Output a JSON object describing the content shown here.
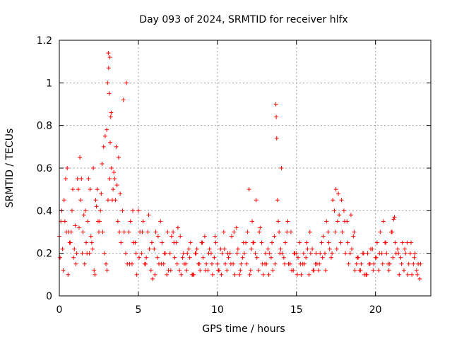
{
  "chart_data": {
    "type": "scatter",
    "title": "Day 093 of 2024, SRMTID for receiver hlfx",
    "xlabel": "GPS time / hours",
    "ylabel": "SRMTID / TECUs",
    "xlim": [
      0,
      23.5
    ],
    "ylim": [
      0,
      1.2
    ],
    "xticks": [
      0,
      5,
      10,
      15,
      20
    ],
    "xtick_labels": [
      "0",
      "5",
      "10",
      "15",
      "20"
    ],
    "yticks": [
      0,
      0.2,
      0.4,
      0.6,
      0.8,
      1.0,
      1.2
    ],
    "ytick_labels": [
      "0",
      "0.2",
      "0.4",
      "0.6",
      "0.8",
      "1",
      "1.2"
    ],
    "grid": true,
    "marker": "+",
    "color": "#ff0000",
    "series": [
      {
        "name": "SRMTID",
        "x": [
          0.0,
          0.1,
          0.2,
          0.3,
          0.4,
          0.5,
          0.6,
          0.7,
          0.8,
          0.9,
          1.0,
          1.1,
          1.2,
          1.3,
          1.4,
          1.5,
          1.6,
          1.7,
          1.8,
          1.9,
          2.0,
          2.1,
          2.2,
          2.3,
          2.4,
          2.5,
          2.6,
          2.7,
          2.8,
          2.9,
          3.0,
          3.05,
          3.1,
          3.12,
          3.15,
          3.2,
          3.25,
          3.3,
          3.4,
          3.5,
          3.6,
          3.7,
          3.8,
          3.9,
          4.0,
          4.2,
          4.4,
          4.6,
          4.8,
          5.0,
          5.2,
          5.4,
          5.6,
          5.8,
          6.0,
          6.2,
          6.4,
          6.6,
          6.8,
          7.0,
          7.2,
          7.4,
          7.6,
          7.8,
          8.0,
          8.2,
          8.4,
          8.6,
          8.8,
          9.0,
          9.2,
          9.4,
          9.6,
          9.8,
          10.0,
          10.2,
          10.4,
          10.6,
          10.8,
          11.0,
          11.2,
          11.4,
          11.6,
          11.8,
          12.0,
          12.2,
          12.4,
          12.6,
          12.8,
          13.0,
          13.2,
          13.4,
          13.6,
          13.7,
          13.72,
          13.75,
          13.8,
          13.9,
          14.0,
          14.2,
          14.4,
          14.6,
          14.8,
          15.0,
          15.2,
          15.4,
          15.6,
          15.8,
          16.0,
          16.2,
          16.4,
          16.6,
          16.8,
          17.0,
          17.2,
          17.4,
          17.5,
          17.6,
          17.8,
          18.0,
          18.2,
          18.4,
          18.6,
          18.8,
          19.0,
          19.2,
          19.4,
          19.6,
          19.8,
          20.0,
          20.2,
          20.4,
          20.6,
          20.8,
          21.0,
          21.2,
          21.4,
          21.6,
          21.8,
          22.0,
          22.2,
          22.4,
          22.6,
          22.8,
          0.05,
          0.25,
          0.45,
          0.65,
          0.85,
          1.05,
          1.25,
          1.45,
          1.65,
          1.85,
          2.05,
          2.25,
          2.45,
          2.65,
          2.85,
          3.35,
          3.45,
          3.55,
          3.65,
          3.75,
          3.85,
          4.1,
          4.3,
          4.5,
          4.7,
          4.9,
          5.1,
          5.3,
          5.5,
          5.7,
          5.9,
          6.1,
          6.3,
          6.5,
          6.7,
          6.9,
          7.1,
          7.3,
          7.5,
          7.7,
          7.9,
          8.1,
          8.3,
          8.5,
          8.7,
          8.9,
          9.1,
          9.3,
          9.5,
          9.7,
          9.9,
          10.1,
          10.3,
          10.5,
          10.7,
          10.9,
          11.1,
          11.3,
          11.5,
          11.7,
          11.9,
          12.1,
          12.3,
          12.5,
          12.7,
          12.9,
          13.1,
          13.3,
          13.5,
          13.85,
          14.1,
          14.3,
          14.5,
          14.7,
          14.9,
          15.1,
          15.3,
          15.5,
          15.7,
          15.9,
          16.1,
          16.3,
          16.5,
          16.7,
          16.9,
          17.1,
          17.3,
          17.7,
          17.9,
          18.1,
          18.3,
          18.5,
          18.7,
          18.9,
          19.1,
          19.3,
          19.5,
          19.7,
          19.9,
          20.1,
          20.3,
          20.5,
          20.7,
          20.9,
          21.1,
          21.3,
          21.5,
          21.7,
          21.9,
          22.1,
          22.3,
          22.5,
          22.7,
          0.15,
          0.35,
          0.55,
          0.75,
          0.95,
          1.15,
          1.35,
          1.55,
          1.75,
          1.95,
          2.15,
          2.35,
          2.55,
          2.75,
          2.95,
          3.02,
          3.08,
          3.18,
          3.22,
          3.28,
          4.05,
          4.25,
          4.45,
          4.65,
          4.85,
          5.05,
          5.25,
          5.45,
          5.65,
          5.85,
          6.05,
          6.25,
          6.45,
          6.65,
          6.85,
          7.05,
          7.25,
          7.45,
          7.65,
          7.85,
          8.05,
          8.25,
          8.45,
          8.65,
          8.85,
          9.05,
          9.25,
          9.45,
          9.65,
          9.85,
          10.05,
          10.25,
          10.45,
          10.65,
          10.85,
          11.05,
          11.25,
          11.45,
          11.65,
          11.85,
          12.05,
          12.15,
          12.25,
          12.45,
          12.65,
          12.85,
          13.05,
          13.25,
          13.45,
          13.65,
          13.95,
          14.05,
          14.25,
          14.45,
          14.65,
          14.85,
          15.05,
          15.25,
          15.45,
          15.65,
          15.85,
          16.05,
          16.25,
          16.45,
          16.65,
          16.85,
          17.05,
          17.25,
          17.45,
          17.55,
          17.65,
          17.85,
          18.05,
          18.25,
          18.45,
          18.65,
          18.85,
          19.05,
          19.25,
          19.45,
          19.65,
          19.85,
          20.05,
          20.25,
          20.45,
          20.65,
          20.85,
          21.05,
          21.15,
          21.25,
          21.45,
          21.65,
          21.85,
          22.05,
          22.25,
          22.45,
          22.65,
          22.85
        ],
        "y": [
          0.28,
          0.35,
          0.22,
          0.45,
          0.55,
          0.6,
          0.3,
          0.25,
          0.4,
          0.18,
          0.33,
          0.2,
          0.5,
          0.65,
          0.55,
          0.3,
          0.15,
          0.25,
          0.35,
          0.2,
          0.28,
          0.22,
          0.12,
          0.45,
          0.5,
          0.3,
          0.4,
          0.62,
          0.7,
          0.75,
          0.78,
          1.0,
          1.14,
          1.07,
          0.95,
          1.12,
          0.84,
          0.6,
          0.5,
          0.55,
          0.7,
          0.35,
          0.3,
          0.25,
          0.4,
          0.2,
          0.3,
          0.15,
          0.25,
          0.4,
          0.2,
          0.15,
          0.3,
          0.12,
          0.22,
          0.18,
          0.35,
          0.15,
          0.1,
          0.2,
          0.3,
          0.25,
          0.12,
          0.18,
          0.15,
          0.22,
          0.1,
          0.2,
          0.15,
          0.25,
          0.28,
          0.12,
          0.2,
          0.18,
          0.15,
          0.22,
          0.3,
          0.12,
          0.2,
          0.15,
          0.32,
          0.1,
          0.18,
          0.25,
          0.5,
          0.35,
          0.2,
          0.12,
          0.25,
          0.15,
          0.22,
          0.18,
          0.28,
          0.9,
          0.84,
          0.74,
          0.45,
          0.3,
          0.22,
          0.18,
          0.3,
          0.15,
          0.12,
          0.2,
          0.25,
          0.15,
          0.18,
          0.1,
          0.22,
          0.15,
          0.12,
          0.25,
          0.2,
          0.3,
          0.18,
          0.4,
          0.5,
          0.35,
          0.25,
          0.4,
          0.35,
          0.2,
          0.28,
          0.15,
          0.12,
          0.2,
          0.1,
          0.15,
          0.22,
          0.18,
          0.12,
          0.2,
          0.25,
          0.15,
          0.3,
          0.37,
          0.22,
          0.18,
          0.12,
          0.25,
          0.2,
          0.15,
          0.12,
          0.08,
          0.18,
          0.12,
          0.3,
          0.25,
          0.5,
          0.15,
          0.32,
          0.2,
          0.4,
          0.55,
          0.25,
          0.1,
          0.35,
          0.48,
          0.2,
          0.45,
          0.58,
          0.45,
          0.52,
          0.65,
          0.48,
          0.3,
          0.15,
          0.35,
          0.25,
          0.1,
          0.3,
          0.35,
          0.18,
          0.22,
          0.08,
          0.3,
          0.15,
          0.25,
          0.2,
          0.12,
          0.28,
          0.18,
          0.32,
          0.1,
          0.15,
          0.2,
          0.25,
          0.1,
          0.22,
          0.12,
          0.18,
          0.15,
          0.22,
          0.1,
          0.25,
          0.12,
          0.2,
          0.15,
          0.18,
          0.28,
          0.1,
          0.22,
          0.15,
          0.2,
          0.3,
          0.12,
          0.25,
          0.18,
          0.32,
          0.1,
          0.15,
          0.2,
          0.12,
          0.35,
          0.2,
          0.25,
          0.15,
          0.12,
          0.2,
          0.18,
          0.1,
          0.15,
          0.22,
          0.2,
          0.12,
          0.15,
          0.2,
          0.28,
          0.35,
          0.22,
          0.45,
          0.38,
          0.3,
          0.2,
          0.15,
          0.22,
          0.12,
          0.18,
          0.15,
          0.1,
          0.2,
          0.22,
          0.15,
          0.25,
          0.3,
          0.35,
          0.2,
          0.15,
          0.18,
          0.2,
          0.1,
          0.25,
          0.2,
          0.15,
          0.1,
          0.2,
          0.15,
          0.4,
          0.35,
          0.1,
          0.3,
          0.22,
          0.55,
          0.45,
          0.38,
          0.2,
          0.5,
          0.6,
          0.42,
          0.35,
          0.3,
          0.15,
          0.12,
          0.45,
          0.55,
          0.72,
          0.86,
          0.92,
          1.0,
          0.15,
          0.4,
          0.2,
          0.18,
          0.3,
          0.15,
          0.38,
          0.25,
          0.1,
          0.28,
          0.15,
          0.2,
          0.3,
          0.12,
          0.25,
          0.15,
          0.28,
          0.2,
          0.12,
          0.18,
          0.1,
          0.2,
          0.15,
          0.25,
          0.12,
          0.2,
          0.15,
          0.28,
          0.12,
          0.1,
          0.22,
          0.2,
          0.15,
          0.3,
          0.2,
          0.12,
          0.25,
          0.15,
          0.1,
          0.22,
          0.25,
          0.45,
          0.3,
          0.15,
          0.2,
          0.1,
          0.25,
          0.15,
          0.2,
          0.6,
          0.15,
          0.35,
          0.3,
          0.2,
          0.1,
          0.15,
          0.2,
          0.25,
          0.3,
          0.12,
          0.2,
          0.15,
          0.18,
          0.12,
          0.25,
          0.2,
          0.3,
          0.22,
          0.48,
          0.45,
          0.35,
          0.25,
          0.38,
          0.3,
          0.18,
          0.12,
          0.2,
          0.1,
          0.15,
          0.12,
          0.18,
          0.2,
          0.15,
          0.25,
          0.12,
          0.3,
          0.36,
          0.25,
          0.2,
          0.15,
          0.22,
          0.1,
          0.25,
          0.18,
          0.1,
          0.15
        ]
      }
    ]
  }
}
